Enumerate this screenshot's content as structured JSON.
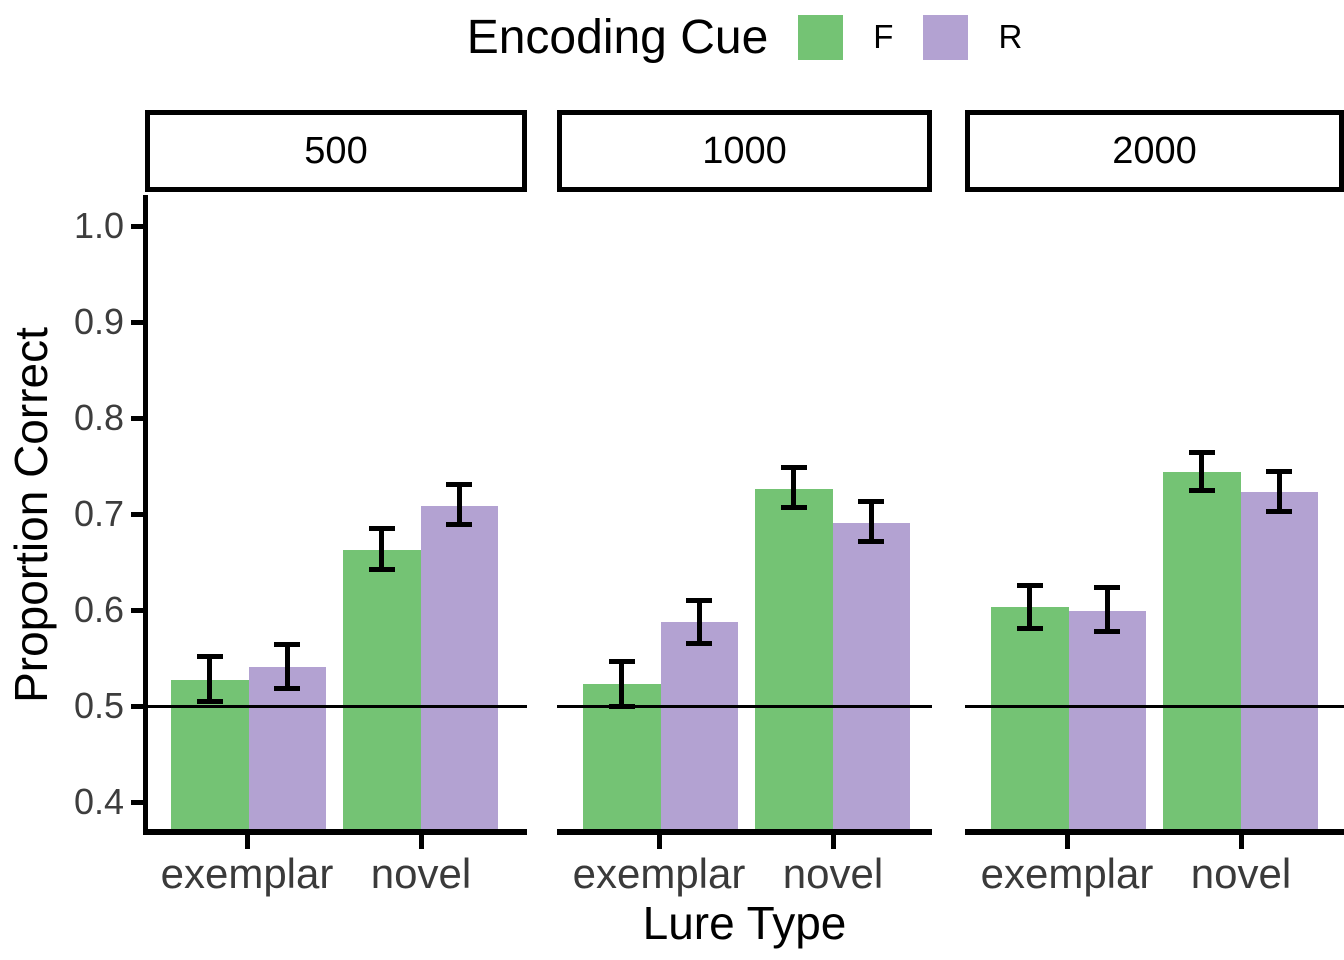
{
  "legend": {
    "title": "Encoding Cue",
    "items": [
      {
        "label": "F",
        "color": "#74C374"
      },
      {
        "label": "R",
        "color": "#B3A2D2"
      }
    ]
  },
  "axes": {
    "xlabel": "Lure Type",
    "ylabel": "Proportion Correct"
  },
  "chart_data": {
    "type": "bar",
    "legend_title": "Encoding Cue",
    "xlabel": "Lure Type",
    "ylabel": "Proportion Correct",
    "facets": [
      "500",
      "1000",
      "2000"
    ],
    "categories": [
      "exemplar",
      "novel"
    ],
    "series_names": [
      "F",
      "R"
    ],
    "colors": {
      "F": "#74C374",
      "R": "#B3A2D2"
    },
    "y_ticks": [
      1.0,
      0.9,
      0.8,
      0.7,
      0.6,
      0.5,
      0.4
    ],
    "ylim_visible": [
      0.37,
      1.03
    ],
    "reference_line_y": 0.5,
    "grid": "off",
    "legend_position": "top",
    "panels": [
      {
        "facet": "500",
        "bars": [
          {
            "category": "exemplar",
            "series": "F",
            "value": 0.527,
            "err_low": 0.502,
            "err_high": 0.554
          },
          {
            "category": "exemplar",
            "series": "R",
            "value": 0.541,
            "err_low": 0.516,
            "err_high": 0.567
          },
          {
            "category": "novel",
            "series": "F",
            "value": 0.662,
            "err_low": 0.64,
            "err_high": 0.688
          },
          {
            "category": "novel",
            "series": "R",
            "value": 0.708,
            "err_low": 0.686,
            "err_high": 0.733
          }
        ]
      },
      {
        "facet": "1000",
        "bars": [
          {
            "category": "exemplar",
            "series": "F",
            "value": 0.523,
            "err_low": 0.497,
            "err_high": 0.549
          },
          {
            "category": "exemplar",
            "series": "R",
            "value": 0.587,
            "err_low": 0.562,
            "err_high": 0.613
          },
          {
            "category": "novel",
            "series": "F",
            "value": 0.726,
            "err_low": 0.704,
            "err_high": 0.751
          },
          {
            "category": "novel",
            "series": "R",
            "value": 0.691,
            "err_low": 0.669,
            "err_high": 0.716
          }
        ]
      },
      {
        "facet": "2000",
        "bars": [
          {
            "category": "exemplar",
            "series": "F",
            "value": 0.603,
            "err_low": 0.578,
            "err_high": 0.628
          },
          {
            "category": "exemplar",
            "series": "R",
            "value": 0.599,
            "err_low": 0.575,
            "err_high": 0.626
          },
          {
            "category": "novel",
            "series": "F",
            "value": 0.744,
            "err_low": 0.722,
            "err_high": 0.767
          },
          {
            "category": "novel",
            "series": "R",
            "value": 0.723,
            "err_low": 0.7,
            "err_high": 0.747
          }
        ]
      }
    ]
  }
}
